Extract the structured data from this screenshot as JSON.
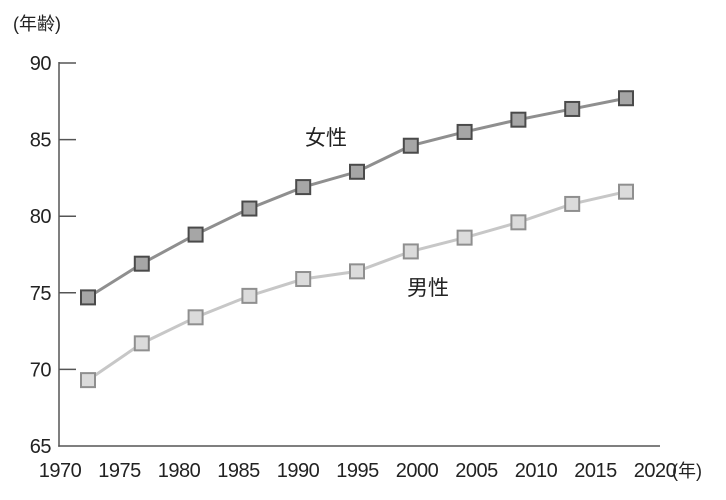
{
  "chart": {
    "y_axis_unit": "(年齢)",
    "x_axis_unit": "(年)"
  },
  "chart_data": {
    "type": "line",
    "title": "",
    "xlabel": "(年)",
    "ylabel": "(年齢)",
    "x": [
      1970,
      1975,
      1980,
      1985,
      1990,
      1995,
      2000,
      2005,
      2010,
      2015,
      2020
    ],
    "x_tick_labels": [
      "1970",
      "1975",
      "1980",
      "1985",
      "1990",
      "1995",
      "2000",
      "2005",
      "2010",
      "2015",
      "2020"
    ],
    "y_ticks": [
      90,
      85,
      80,
      75,
      70,
      65
    ],
    "ylim": [
      65,
      90
    ],
    "grid": false,
    "legend_position": "inline labels next to lines",
    "series": [
      {
        "name": "女性",
        "values": [
          74.7,
          76.9,
          78.8,
          80.5,
          81.9,
          82.9,
          84.6,
          85.5,
          86.3,
          87.0,
          87.7
        ],
        "marker": "square",
        "line_color": "#8f8f8f",
        "marker_fill": "#a6a6a6",
        "marker_border": "#4a4a4a"
      },
      {
        "name": "男性",
        "values": [
          69.3,
          71.7,
          73.4,
          74.8,
          75.9,
          76.4,
          77.7,
          78.6,
          79.6,
          80.8,
          81.6
        ],
        "marker": "square",
        "line_color": "#c7c7c7",
        "marker_fill": "#dbdbdb",
        "marker_border": "#8f8f8f"
      }
    ],
    "colors": {
      "axis": "#555555",
      "text": "#222222",
      "background": "#ffffff"
    }
  }
}
